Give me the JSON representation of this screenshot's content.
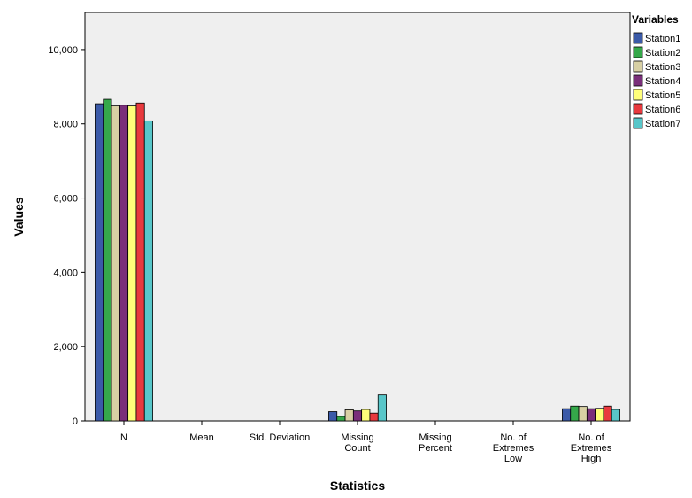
{
  "chart_data": {
    "type": "bar",
    "xlabel": "Statistics",
    "ylabel": "Values",
    "ylim": [
      0,
      11000
    ],
    "yticks": [
      0,
      2000,
      4000,
      6000,
      8000,
      10000
    ],
    "ytick_labels": [
      "0",
      "2,000",
      "4,000",
      "6,000",
      "8,000",
      "10,000"
    ],
    "grid": false,
    "legend": {
      "title": "Variables",
      "position": "right"
    },
    "categories": [
      [
        "N"
      ],
      [
        "Mean"
      ],
      [
        "Std. Deviation"
      ],
      [
        "Missing",
        "Count"
      ],
      [
        "Missing",
        "Percent"
      ],
      [
        "No. of",
        "Extremes",
        "Low"
      ],
      [
        "No. of",
        "Extremes",
        "High"
      ]
    ],
    "series": [
      {
        "name": "Station1",
        "color": "#3b5aa8",
        "values": [
          8540,
          0,
          0,
          250,
          0,
          0,
          330
        ]
      },
      {
        "name": "Station2",
        "color": "#35a84a",
        "values": [
          8660,
          0,
          0,
          120,
          0,
          0,
          400
        ]
      },
      {
        "name": "Station3",
        "color": "#d8d0a4",
        "values": [
          8480,
          0,
          0,
          300,
          0,
          0,
          390
        ]
      },
      {
        "name": "Station4",
        "color": "#7a2f7a",
        "values": [
          8500,
          0,
          0,
          270,
          0,
          0,
          330
        ]
      },
      {
        "name": "Station5",
        "color": "#ffff7a",
        "values": [
          8480,
          0,
          0,
          310,
          0,
          0,
          340
        ]
      },
      {
        "name": "Station6",
        "color": "#e8393e",
        "values": [
          8560,
          0,
          0,
          210,
          0,
          0,
          400
        ]
      },
      {
        "name": "Station7",
        "color": "#58c6c9",
        "values": [
          8080,
          0,
          0,
          700,
          0,
          0,
          310
        ]
      }
    ],
    "plot_background": "#efefef"
  }
}
